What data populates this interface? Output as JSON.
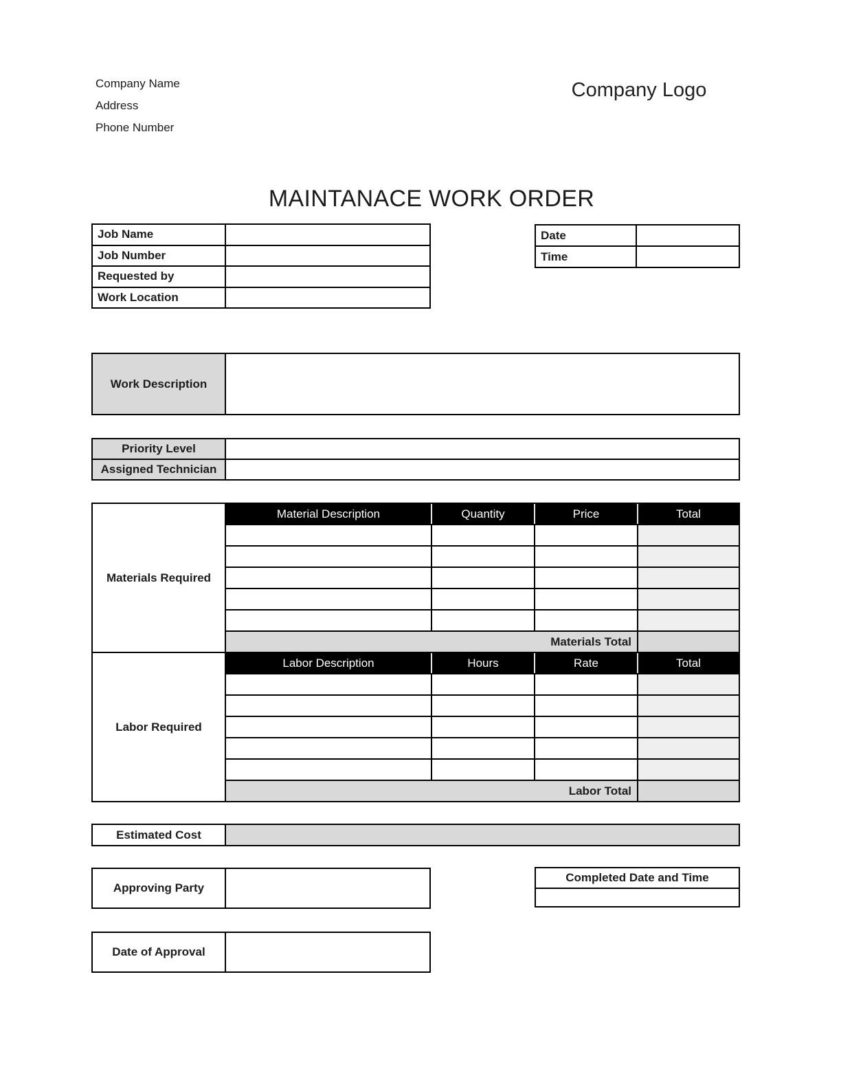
{
  "colors": {
    "border": "#000000",
    "header_bg": "#000000",
    "header_text": "#ffffff",
    "label_gray": "#d9d9d9",
    "field_light_gray": "#efefef",
    "total_row_gray": "#d9d9d9",
    "text": "#1c1c1c",
    "page_bg": "#ffffff"
  },
  "header": {
    "company_name": "Company Name",
    "address": "Address",
    "phone_number": "Phone Number",
    "logo_text": "Company Logo"
  },
  "title": "MAINTANACE WORK ORDER",
  "job_info": {
    "rows": [
      {
        "label": "Job Name",
        "value": ""
      },
      {
        "label": "Job Number",
        "value": ""
      },
      {
        "label": "Requested by",
        "value": ""
      },
      {
        "label": "Work Location",
        "value": ""
      }
    ]
  },
  "date_time": {
    "rows": [
      {
        "label": "Date",
        "value": ""
      },
      {
        "label": "Time",
        "value": ""
      }
    ]
  },
  "work_description": {
    "label": "Work Description",
    "value": ""
  },
  "assignment": {
    "rows": [
      {
        "label": "Priority Level",
        "value": ""
      },
      {
        "label": "Assigned Technician",
        "value": ""
      }
    ]
  },
  "materials": {
    "section_label": "Materials Required",
    "headers": [
      "Material Description",
      "Quantity",
      "Price",
      "Total"
    ],
    "rows": [
      [
        "",
        "",
        "",
        ""
      ],
      [
        "",
        "",
        "",
        ""
      ],
      [
        "",
        "",
        "",
        ""
      ],
      [
        "",
        "",
        "",
        ""
      ],
      [
        "",
        "",
        "",
        ""
      ]
    ],
    "total_label": "Materials Total",
    "total_value": ""
  },
  "labor": {
    "section_label": "Labor Required",
    "headers": [
      "Labor Description",
      "Hours",
      "Rate",
      "Total"
    ],
    "rows": [
      [
        "",
        "",
        "",
        ""
      ],
      [
        "",
        "",
        "",
        ""
      ],
      [
        "",
        "",
        "",
        ""
      ],
      [
        "",
        "",
        "",
        ""
      ],
      [
        "",
        "",
        "",
        ""
      ]
    ],
    "total_label": "Labor Total",
    "total_value": ""
  },
  "estimated_cost": {
    "label": "Estimated Cost",
    "value": ""
  },
  "approving_party": {
    "label": "Approving Party",
    "value": ""
  },
  "completed": {
    "label": "Completed Date and Time",
    "value": ""
  },
  "date_of_approval": {
    "label": "Date of Approval",
    "value": ""
  }
}
